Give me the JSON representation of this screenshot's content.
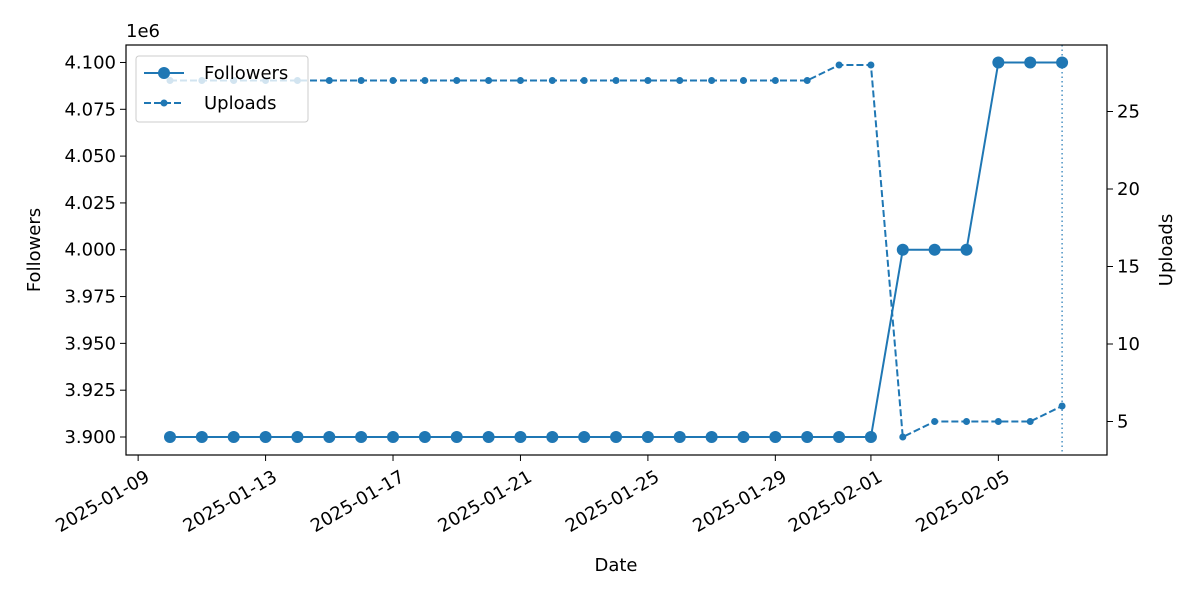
{
  "chart_data": {
    "type": "line",
    "xlabel": "Date",
    "ylabel_left": "Followers",
    "ylabel_right": "Uploads",
    "y_left_offset_label": "1e6",
    "x_ticks": [
      "2025-01-09",
      "2025-01-13",
      "2025-01-17",
      "2025-01-21",
      "2025-01-25",
      "2025-01-29",
      "2025-02-01",
      "2025-02-05"
    ],
    "y_left_ticks": [
      "3.900",
      "3.925",
      "3.950",
      "3.975",
      "4.000",
      "4.025",
      "4.050",
      "4.075",
      "4.100"
    ],
    "y_right_ticks": [
      "5",
      "10",
      "15",
      "20",
      "25"
    ],
    "legend_position": "upper-left",
    "grid": false,
    "color": "#1f77b4",
    "marker_date": "2025-02-07",
    "x": [
      "2025-01-10",
      "2025-01-11",
      "2025-01-12",
      "2025-01-13",
      "2025-01-14",
      "2025-01-15",
      "2025-01-16",
      "2025-01-17",
      "2025-01-18",
      "2025-01-19",
      "2025-01-20",
      "2025-01-21",
      "2025-01-22",
      "2025-01-23",
      "2025-01-24",
      "2025-01-25",
      "2025-01-26",
      "2025-01-27",
      "2025-01-28",
      "2025-01-29",
      "2025-01-30",
      "2025-01-31",
      "2025-02-01",
      "2025-02-02",
      "2025-02-03",
      "2025-02-04",
      "2025-02-05",
      "2025-02-06",
      "2025-02-07"
    ],
    "series": [
      {
        "name": "Followers",
        "axis": "left",
        "style": "solid",
        "marker": "large-circle",
        "values": [
          3900000,
          3900000,
          3900000,
          3900000,
          3900000,
          3900000,
          3900000,
          3900000,
          3900000,
          3900000,
          3900000,
          3900000,
          3900000,
          3900000,
          3900000,
          3900000,
          3900000,
          3900000,
          3900000,
          3900000,
          3900000,
          3900000,
          3900000,
          4000000,
          4000000,
          4000000,
          4100000,
          4100000,
          4100000
        ]
      },
      {
        "name": "Uploads",
        "axis": "right",
        "style": "dashed",
        "marker": "small-circle",
        "values": [
          27,
          27,
          27,
          27,
          27,
          27,
          27,
          27,
          27,
          27,
          27,
          27,
          27,
          27,
          27,
          27,
          27,
          27,
          27,
          27,
          27,
          28,
          28,
          4,
          5,
          5,
          5,
          5,
          6
        ]
      }
    ]
  }
}
